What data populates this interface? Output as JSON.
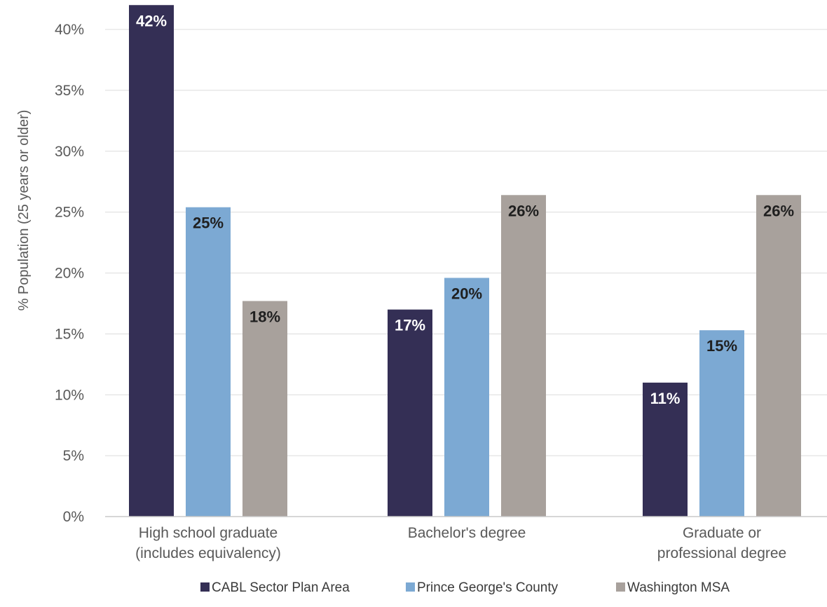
{
  "chart_data": {
    "type": "bar",
    "categories": [
      [
        "High school graduate",
        "(includes equivalency)"
      ],
      [
        "Bachelor's degree"
      ],
      [
        "Graduate or",
        "professional degree"
      ]
    ],
    "series": [
      {
        "name": "CABL Sector Plan Area",
        "values": [
          42,
          17,
          11
        ],
        "labels": [
          "42%",
          "17%",
          "11%"
        ],
        "color": "#342f55",
        "label_color": "#ffffff"
      },
      {
        "name": "Prince George's County",
        "values": [
          25.4,
          19.6,
          15.3
        ],
        "labels": [
          "25%",
          "20%",
          "15%"
        ],
        "color": "#7ca9d3",
        "label_color": "#1f1f1f"
      },
      {
        "name": "Washington MSA",
        "values": [
          17.7,
          26.4,
          26.4
        ],
        "labels": [
          "18%",
          "26%",
          "26%"
        ],
        "color": "#a8a19c",
        "label_color": "#1f1f1f"
      }
    ],
    "ylabel": "% Population (25 years or older)",
    "ylim": [
      0,
      40
    ],
    "yticks": [
      0,
      5,
      10,
      15,
      20,
      25,
      30,
      35,
      40
    ],
    "ytick_labels": [
      "0%",
      "5%",
      "10%",
      "15%",
      "20%",
      "25%",
      "30%",
      "35%",
      "40%"
    ],
    "grid": true,
    "legend": "bottom"
  }
}
